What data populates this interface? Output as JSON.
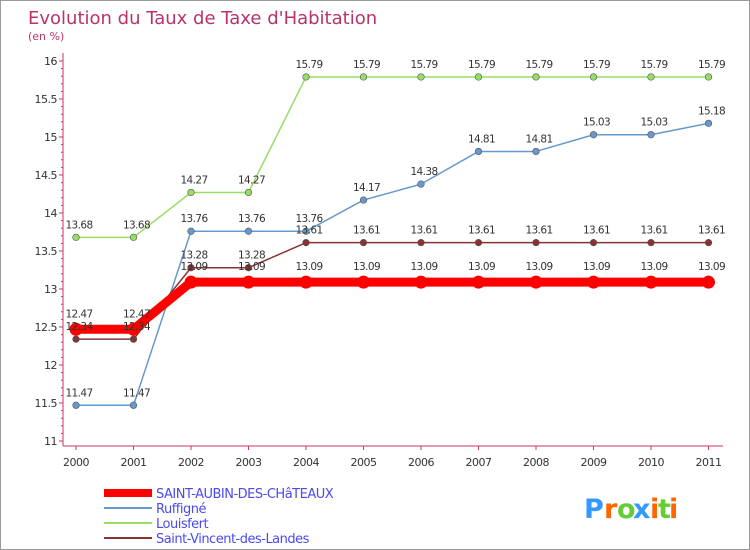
{
  "chart_data": {
    "type": "line",
    "title": "Evolution du Taux de Taxe d'Habitation",
    "subtitle": "(en %)",
    "x": [
      "2000",
      "2001",
      "2002",
      "2003",
      "2004",
      "2005",
      "2006",
      "2007",
      "2008",
      "2009",
      "2010",
      "2011"
    ],
    "ylim": [
      11,
      16
    ],
    "yticks": [
      "11",
      "11.5",
      "12",
      "12.5",
      "13",
      "13.5",
      "14",
      "14.5",
      "15",
      "15.5",
      "16"
    ],
    "grid": false,
    "legend_position": "bottom-left",
    "series": [
      {
        "name": "SAINT-AUBIN-DES-CHâTEAUX",
        "color": "#ff0000",
        "values": [
          12.47,
          12.47,
          13.09,
          13.09,
          13.09,
          13.09,
          13.09,
          13.09,
          13.09,
          13.09,
          13.09,
          13.09
        ],
        "labels": [
          "12.47",
          "12.47",
          "13.09",
          "13.09",
          "13.09",
          "13.09",
          "13.09",
          "13.09",
          "13.09",
          "13.09",
          "13.09",
          "13.09"
        ]
      },
      {
        "name": "Ruffigné",
        "color": "#6699cc",
        "values": [
          11.47,
          11.47,
          13.76,
          13.76,
          13.76,
          14.17,
          14.38,
          14.81,
          14.81,
          15.03,
          15.03,
          15.18
        ],
        "labels": [
          "11.47",
          "11.47",
          "13.76",
          "13.76",
          "13.76",
          "14.17",
          "14.38",
          "14.81",
          "14.81",
          "15.03",
          "15.03",
          "15.18"
        ]
      },
      {
        "name": "Louisfert",
        "color": "#99dd66",
        "values": [
          13.68,
          13.68,
          14.27,
          14.27,
          15.79,
          15.79,
          15.79,
          15.79,
          15.79,
          15.79,
          15.79,
          15.79
        ],
        "labels": [
          "13.68",
          "13.68",
          "14.27",
          "14.27",
          "15.79",
          "15.79",
          "15.79",
          "15.79",
          "15.79",
          "15.79",
          "15.79",
          "15.79"
        ]
      },
      {
        "name": "Saint-Vincent-des-Landes",
        "color": "#883333",
        "values": [
          12.34,
          12.34,
          13.28,
          13.28,
          13.61,
          13.61,
          13.61,
          13.61,
          13.61,
          13.61,
          13.61,
          13.61
        ],
        "labels": [
          "12.34",
          "12.34",
          "13.28",
          "13.28",
          "13.61",
          "13.61",
          "13.61",
          "13.61",
          "13.61",
          "13.61",
          "13.61",
          "13.61"
        ]
      }
    ]
  },
  "logo": {
    "letters": [
      "P",
      "r",
      "o",
      "x",
      "i",
      "t",
      "i"
    ],
    "colors": [
      "#3399ff",
      "#ff6600",
      "#66cc33",
      "#3399ff",
      "#ff6600",
      "#66cc33",
      "#ff6600"
    ]
  }
}
